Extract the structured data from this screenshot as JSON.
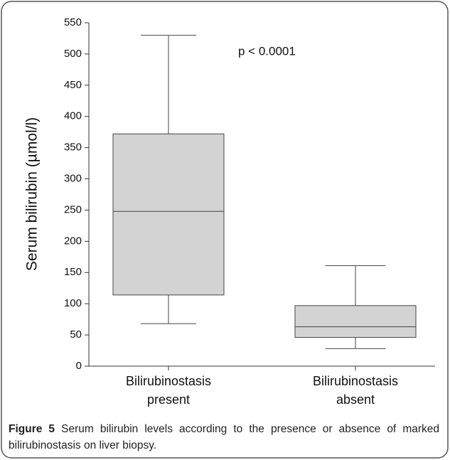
{
  "chart_data": {
    "type": "box",
    "ylabel": "Serum bilirubin (µmol/l)",
    "annotation": "p < 0.0001",
    "categories": [
      [
        "Bilirubinostasis",
        "present"
      ],
      [
        "Bilirubinostasis",
        "absent"
      ]
    ],
    "whisker_low": [
      68,
      28
    ],
    "q1": [
      114,
      46
    ],
    "median": [
      248,
      63
    ],
    "q3": [
      372,
      97
    ],
    "whisker_high": [
      530,
      161
    ],
    "color": "#d3d3d3",
    "ylim": [
      0,
      550
    ],
    "yticks": [
      0,
      50,
      100,
      150,
      200,
      250,
      300,
      350,
      400,
      450,
      500,
      550
    ]
  },
  "caption": {
    "label": "Figure 5",
    "text": "Serum bilirubin levels according to the presence or absence of marked bilirubinostasis on liver biopsy"
  }
}
